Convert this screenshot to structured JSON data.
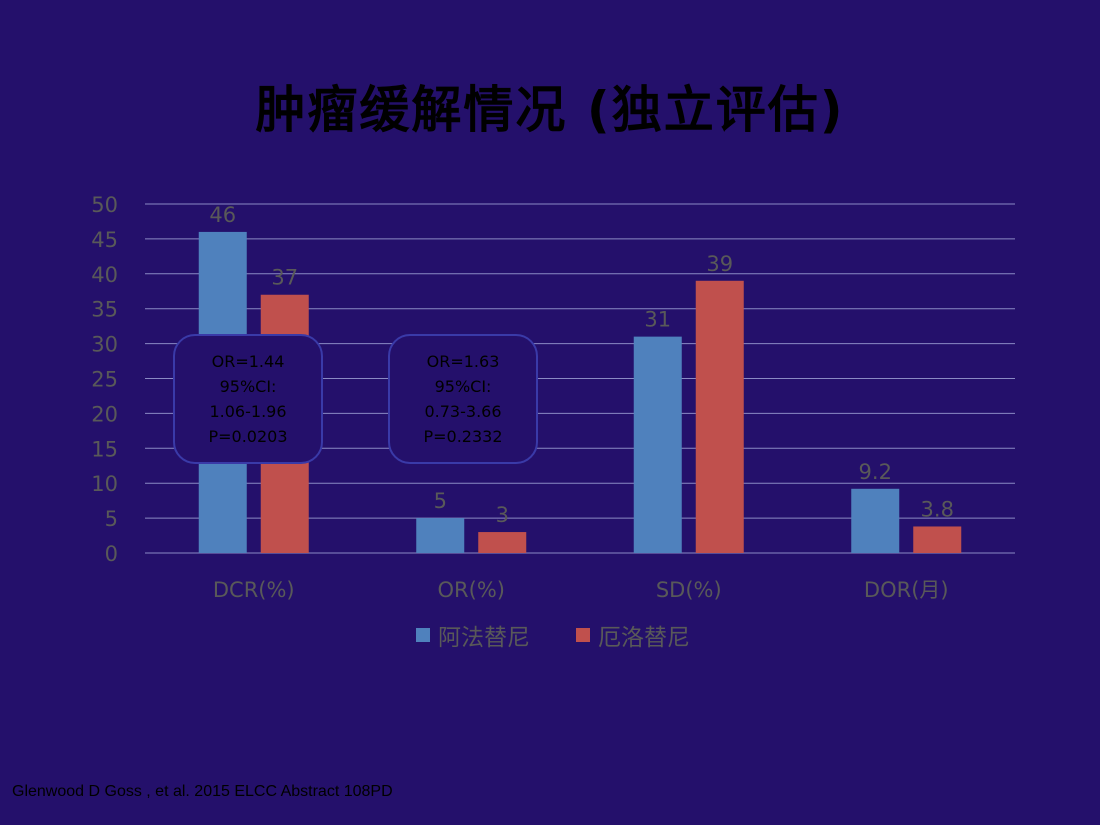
{
  "title": "肿瘤缓解情况 (独立评估)",
  "chart_data": {
    "type": "bar",
    "categories": [
      "DCR(%)",
      "OR(%)",
      "SD(%)",
      "DOR(月)"
    ],
    "series": [
      {
        "name": "阿法替尼",
        "values": [
          46,
          5,
          31,
          9.2
        ],
        "color": "#4f81bd"
      },
      {
        "name": "厄洛替尼",
        "values": [
          37,
          3,
          39,
          3.8
        ],
        "color": "#c0504d"
      }
    ],
    "data_labels": [
      [
        "46",
        "5",
        "31",
        "9.2"
      ],
      [
        "37",
        "3",
        "39",
        "3.8"
      ]
    ],
    "yticks": [
      "0",
      "5",
      "10",
      "15",
      "20",
      "25",
      "30",
      "35",
      "40",
      "45",
      "50"
    ],
    "ylim": [
      0,
      50
    ],
    "grid": true,
    "legend": "bottom-center",
    "text_color": "#595959",
    "grid_color": "#8a8ac4"
  },
  "annotations": [
    {
      "lines": [
        "OR=1.44",
        "95%CI:",
        "1.06-1.96",
        "P=0.0203"
      ]
    },
    {
      "lines": [
        "OR=1.63",
        "95%CI:",
        "0.73-3.66",
        "P=0.2332"
      ]
    }
  ],
  "citation": "Glenwood D Goss , et al. 2015 ELCC Abstract 108PD"
}
